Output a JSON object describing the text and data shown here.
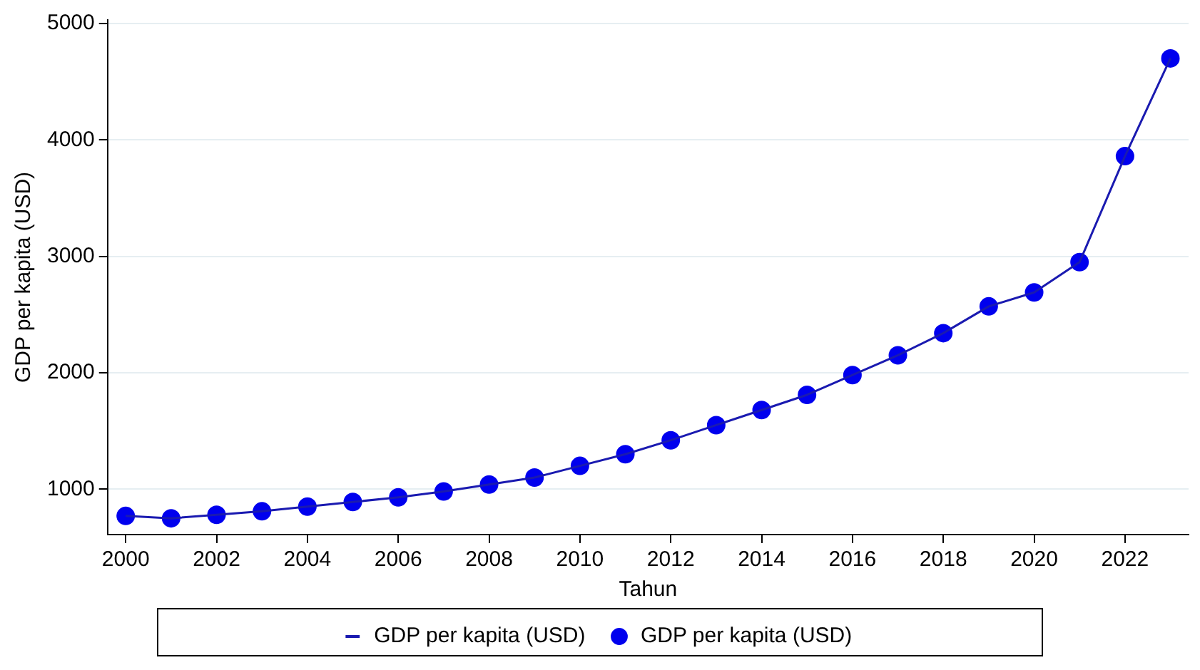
{
  "chart_data": {
    "type": "line",
    "xlabel": "Tahun",
    "ylabel": "GDP per kapita (USD)",
    "x": [
      2000,
      2001,
      2002,
      2003,
      2004,
      2005,
      2006,
      2007,
      2008,
      2009,
      2010,
      2011,
      2012,
      2013,
      2014,
      2015,
      2016,
      2017,
      2018,
      2019,
      2020,
      2021,
      2022,
      2023
    ],
    "series": [
      {
        "name": "GDP per kapita (USD)",
        "type": "line",
        "marker": "none",
        "color": "#1a1ab0",
        "values": [
          770,
          750,
          780,
          810,
          850,
          890,
          930,
          980,
          1040,
          1100,
          1200,
          1300,
          1420,
          1550,
          1680,
          1810,
          1980,
          2150,
          2340,
          2570,
          2690,
          2950,
          3860,
          4700
        ]
      },
      {
        "name": "GDP per kapita (USD)",
        "type": "scatter",
        "marker": "circle",
        "color": "#0000ee",
        "values": [
          770,
          750,
          780,
          810,
          850,
          890,
          930,
          980,
          1040,
          1100,
          1200,
          1300,
          1420,
          1550,
          1680,
          1810,
          1980,
          2150,
          2340,
          2570,
          2690,
          2950,
          3860,
          4700
        ]
      }
    ],
    "xlim": [
      1999.6,
      2023.4
    ],
    "xticks": [
      2000,
      2002,
      2004,
      2006,
      2008,
      2010,
      2012,
      2014,
      2016,
      2018,
      2020,
      2022
    ],
    "ylim": [
      610,
      5030
    ],
    "yticks": [
      1000,
      2000,
      3000,
      4000,
      5000
    ],
    "grid": "y",
    "legend": "bottom"
  }
}
